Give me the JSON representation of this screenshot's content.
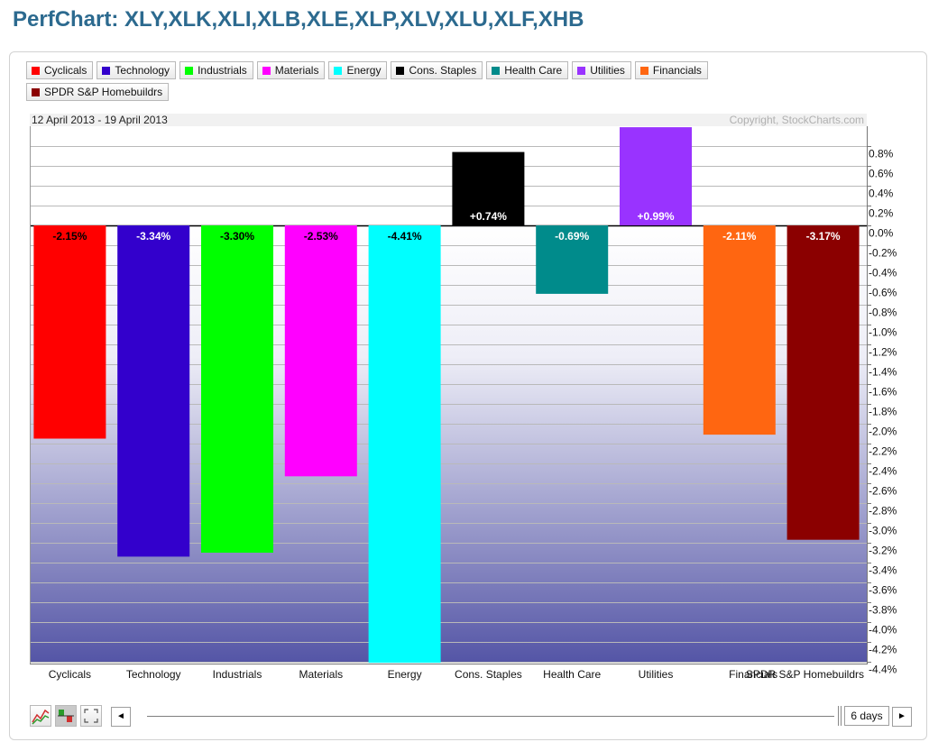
{
  "title": "PerfChart: XLY,XLK,XLI,XLB,XLE,XLP,XLV,XLU,XLF,XHB",
  "date_range": "12 April 2013 - 19 April 2013",
  "copyright": "Copyright, StockCharts.com",
  "legend": [
    {
      "label": "Cyclicals",
      "color": "#ff0000"
    },
    {
      "label": "Technology",
      "color": "#3300cc"
    },
    {
      "label": "Industrials",
      "color": "#00ff00"
    },
    {
      "label": "Materials",
      "color": "#ff00ff"
    },
    {
      "label": "Energy",
      "color": "#00ffff"
    },
    {
      "label": "Cons. Staples",
      "color": "#000000"
    },
    {
      "label": "Health Care",
      "color": "#008b8b"
    },
    {
      "label": "Utilities",
      "color": "#9933ff"
    },
    {
      "label": "Financials",
      "color": "#ff6611"
    },
    {
      "label": "SPDR S&P Homebuildrs",
      "color": "#8b0000"
    }
  ],
  "toolbar": {
    "prev_arrow": "◄",
    "next_arrow": "►",
    "period_label": "6 days"
  },
  "chart_data": {
    "type": "bar",
    "categories": [
      "Cyclicals",
      "Technology",
      "Industrials",
      "Materials",
      "Energy",
      "Cons. Staples",
      "Health Care",
      "Utilities",
      "Financials",
      "SPDR S&P Homebuildrs"
    ],
    "values": [
      -2.15,
      -3.34,
      -3.3,
      -2.53,
      -4.41,
      0.74,
      -0.69,
      0.99,
      -2.11,
      -3.17
    ],
    "data_labels": [
      "-2.15%",
      "-3.34%",
      "-3.30%",
      "-2.53%",
      "-4.41%",
      "+0.74%",
      "-0.69%",
      "+0.99%",
      "-2.11%",
      "-3.17%"
    ],
    "colors": [
      "#ff0000",
      "#3300cc",
      "#00ff00",
      "#ff00ff",
      "#00ffff",
      "#000000",
      "#008b8b",
      "#9933ff",
      "#ff6611",
      "#8b0000"
    ],
    "label_colors": [
      "#000000",
      "#ffffff",
      "#000000",
      "#000000",
      "#000000",
      "#ffffff",
      "#ffffff",
      "#ffffff",
      "#ffffff",
      "#ffffff"
    ],
    "yticks": [
      0.8,
      0.6,
      0.4,
      0.2,
      0.0,
      -0.2,
      -0.4,
      -0.6,
      -0.8,
      -1.0,
      -1.2,
      -1.4,
      -1.6,
      -1.8,
      -2.0,
      -2.2,
      -2.4,
      -2.6,
      -2.8,
      -3.0,
      -3.2,
      -3.4,
      -3.6,
      -3.8,
      -4.0,
      -4.2,
      -4.4
    ],
    "ytick_labels": [
      "0.8%",
      "0.6%",
      "0.4%",
      "0.2%",
      "0.0%",
      "-0.2%",
      "-0.4%",
      "-0.6%",
      "-0.8%",
      "-1.0%",
      "-1.2%",
      "-1.4%",
      "-1.6%",
      "-1.8%",
      "-2.0%",
      "-2.2%",
      "-2.4%",
      "-2.6%",
      "-2.8%",
      "-3.0%",
      "-3.2%",
      "-3.4%",
      "-3.6%",
      "-3.8%",
      "-4.0%",
      "-4.2%",
      "-4.4%"
    ],
    "ylim": [
      -4.4,
      0.99
    ],
    "grid": true,
    "yaxis_position": "right",
    "xlabel": "",
    "ylabel": ""
  }
}
